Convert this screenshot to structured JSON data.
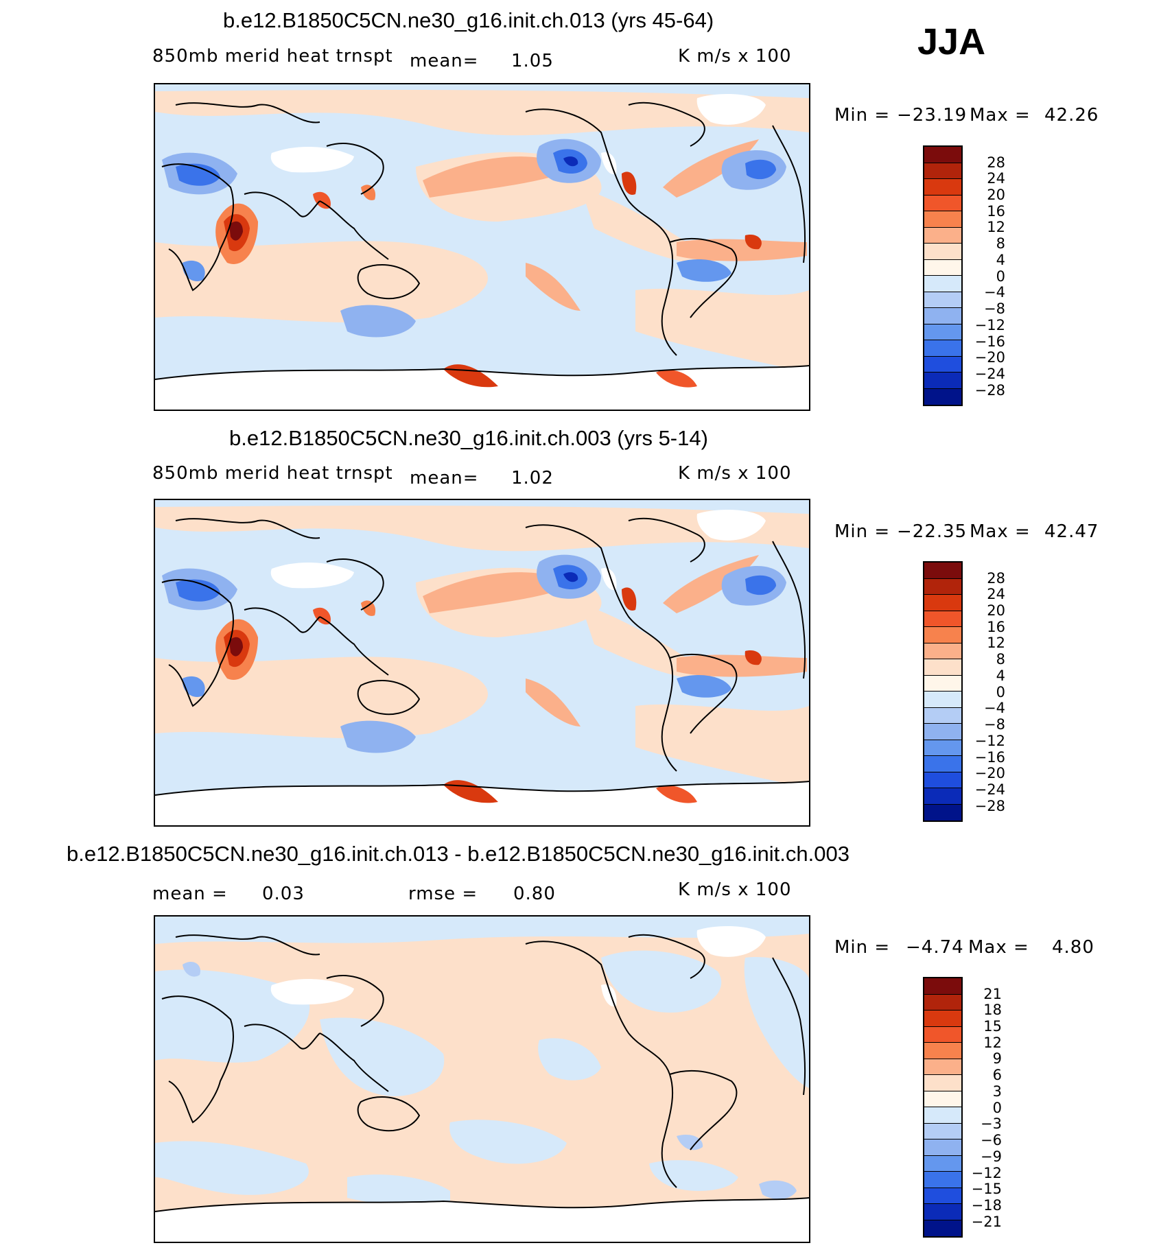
{
  "season": "JJA",
  "panels": [
    {
      "title": "b.e12.B1850C5CN.ne30_g16.init.ch.013 (yrs 45-64)",
      "variable": "850mb merid heat trnspt",
      "mean_label": "mean=",
      "mean_value": "1.05",
      "units": "K m/s x 100",
      "min_label": "Min =",
      "min_value": "−23.19",
      "max_label": "Max =",
      "max_value": "42.26"
    },
    {
      "title": "b.e12.B1850C5CN.ne30_g16.init.ch.003 (yrs 5-14)",
      "variable": "850mb merid heat trnspt",
      "mean_label": "mean=",
      "mean_value": "1.02",
      "units": "K m/s x 100",
      "min_label": "Min =",
      "min_value": "−22.35",
      "max_label": "Max =",
      "max_value": "42.47"
    },
    {
      "title": "b.e12.B1850C5CN.ne30_g16.init.ch.013 - b.e12.B1850C5CN.ne30_g16.init.ch.003",
      "mean_label": "mean =",
      "mean_value": "0.03",
      "rmse_label": "rmse =",
      "rmse_value": "0.80",
      "units": "K m/s x 100",
      "min_label": "Min =",
      "min_value": "−4.74",
      "max_label": "Max =",
      "max_value": "4.80"
    }
  ],
  "colorbars": {
    "absolute": {
      "labels": [
        "28",
        "24",
        "20",
        "16",
        "12",
        "8",
        "4",
        "0",
        "−4",
        "−8",
        "−12",
        "−16",
        "−20",
        "−24",
        "−28"
      ],
      "colors": [
        "#7b0c0c",
        "#b1240b",
        "#d9390f",
        "#f0562a",
        "#f7824d",
        "#fbb08a",
        "#fde0ca",
        "#fff6ea",
        "#d6e9fa",
        "#b4cdf5",
        "#8fb2f0",
        "#6497ee",
        "#3a73ea",
        "#1f4ede",
        "#0b2bb8",
        "#00138a"
      ]
    },
    "difference": {
      "labels": [
        "21",
        "18",
        "15",
        "12",
        "9",
        "6",
        "3",
        "0",
        "−3",
        "−6",
        "−9",
        "−12",
        "−15",
        "−18",
        "−21"
      ],
      "colors": [
        "#7b0c0c",
        "#b1240b",
        "#d9390f",
        "#f0562a",
        "#f7824d",
        "#fbb08a",
        "#fde0ca",
        "#fff6ea",
        "#d6e9fa",
        "#b4cdf5",
        "#8fb2f0",
        "#6497ee",
        "#3a73ea",
        "#1f4ede",
        "#0b2bb8",
        "#00138a"
      ]
    }
  }
}
